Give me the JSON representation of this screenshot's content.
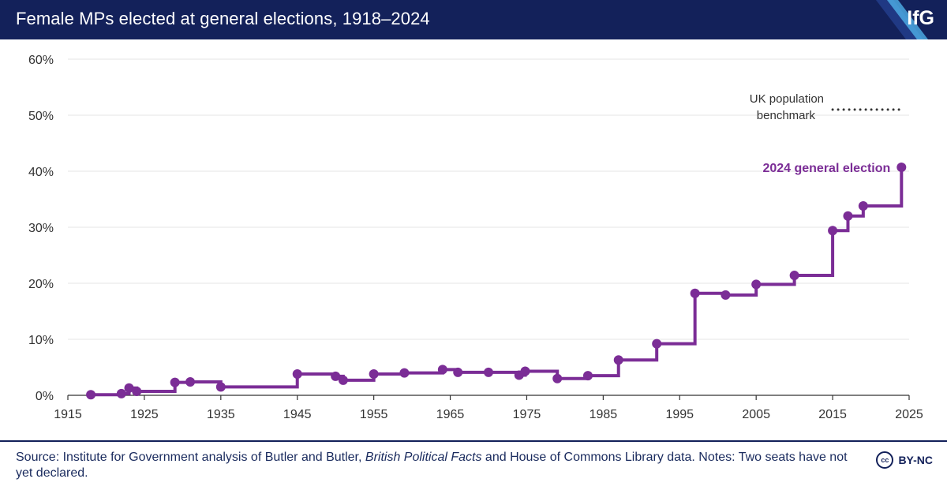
{
  "header": {
    "title": "Female MPs elected at general elections, 1918–2024",
    "logo_text": "IfG"
  },
  "colors": {
    "header_bg": "#13215a",
    "series": "#7b2d96",
    "benchmark": "#333333",
    "grid": "#e6e6e6",
    "axis_text": "#333333"
  },
  "chart_data": {
    "type": "line",
    "step": true,
    "title": "Female MPs elected at general elections, 1918–2024",
    "xlabel": "",
    "ylabel": "",
    "xlim": [
      1915,
      2025
    ],
    "ylim": [
      0,
      60
    ],
    "x_ticks": [
      1915,
      1925,
      1935,
      1945,
      1955,
      1965,
      1975,
      1985,
      1995,
      2005,
      2015,
      2025
    ],
    "y_ticks": [
      0,
      10,
      20,
      30,
      40,
      50,
      60
    ],
    "y_tick_labels": [
      "0%",
      "10%",
      "20%",
      "30%",
      "40%",
      "50%",
      "60%"
    ],
    "grid": true,
    "series": [
      {
        "x": [
          1918,
          1922,
          1923,
          1924,
          1929,
          1931,
          1935,
          1945,
          1950,
          1951,
          1955,
          1959,
          1964,
          1966,
          1970,
          1974,
          1974.8,
          1979,
          1983,
          1987,
          1992,
          1997,
          2001,
          2005,
          2010,
          2015,
          2017,
          2019,
          2024
        ],
        "y": [
          0.1,
          0.3,
          1.3,
          0.7,
          2.3,
          2.4,
          1.5,
          3.8,
          3.4,
          2.7,
          3.8,
          4.0,
          4.6,
          4.1,
          4.1,
          3.6,
          4.3,
          3.0,
          3.5,
          6.3,
          9.2,
          18.2,
          17.9,
          19.8,
          21.4,
          29.4,
          32.0,
          33.8,
          40.7
        ]
      }
    ],
    "benchmark": {
      "label_line1": "UK population",
      "label_line2": "benchmark",
      "value": 51,
      "x_range": [
        2015,
        2024
      ]
    },
    "annotation": {
      "text": "2024 general election",
      "x": 2024,
      "y": 40.7
    }
  },
  "footer": {
    "source_prefix": "Source: Institute for Government analysis of Butler and Butler, ",
    "source_italic": "British Political Facts",
    "source_suffix": " and House of Commons Library data. Notes: Two seats have not yet declared.",
    "license": "BY-NC",
    "cc_symbol": "cc"
  }
}
